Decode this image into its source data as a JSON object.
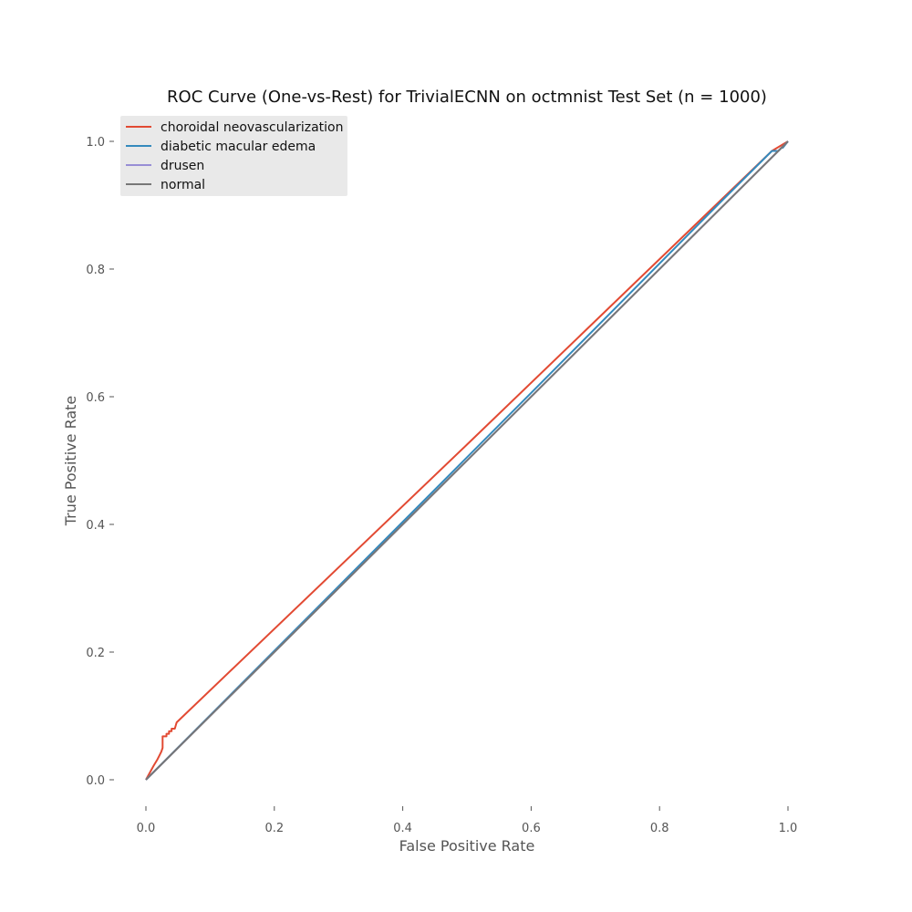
{
  "chart_data": {
    "type": "line",
    "title": "ROC Curve (One-vs-Rest) for TrivialECNN on octmnist Test Set (n = 1000)",
    "xlabel": "False Positive Rate",
    "ylabel": "True Positive Rate",
    "xlim": [
      -0.05,
      1.05
    ],
    "ylim": [
      -0.05,
      1.05
    ],
    "xticks": [
      0.0,
      0.2,
      0.4,
      0.6,
      0.8,
      1.0
    ],
    "xtick_labels": [
      "0.0",
      "0.2",
      "0.4",
      "0.6",
      "0.8",
      "1.0"
    ],
    "yticks": [
      0.0,
      0.2,
      0.4,
      0.6,
      0.8,
      1.0
    ],
    "ytick_labels": [
      "0.0",
      "0.2",
      "0.4",
      "0.6",
      "0.8",
      "1.0"
    ],
    "grid": false,
    "legend_position": "top-left",
    "series": [
      {
        "name": "choroidal neovascularization",
        "color": "#E24A33",
        "points": [
          [
            0.0,
            0.0
          ],
          [
            0.012,
            0.022
          ],
          [
            0.018,
            0.032
          ],
          [
            0.021,
            0.038
          ],
          [
            0.024,
            0.044
          ],
          [
            0.026,
            0.05
          ],
          [
            0.026,
            0.068
          ],
          [
            0.032,
            0.068
          ],
          [
            0.032,
            0.072
          ],
          [
            0.036,
            0.072
          ],
          [
            0.036,
            0.076
          ],
          [
            0.04,
            0.076
          ],
          [
            0.04,
            0.08
          ],
          [
            0.045,
            0.08
          ],
          [
            0.047,
            0.087
          ],
          [
            0.048,
            0.09
          ],
          [
            0.5,
            0.525
          ],
          [
            0.975,
            0.985
          ],
          [
            1.0,
            1.0
          ]
        ]
      },
      {
        "name": "diabetic macular edema",
        "color": "#348ABD",
        "points": [
          [
            0.0,
            0.0
          ],
          [
            0.3,
            0.303
          ],
          [
            0.6,
            0.606
          ],
          [
            0.9,
            0.91
          ],
          [
            0.975,
            0.985
          ],
          [
            0.985,
            0.985
          ],
          [
            0.99,
            0.99
          ],
          [
            0.992,
            0.99
          ],
          [
            1.0,
            1.0
          ]
        ]
      },
      {
        "name": "drusen",
        "color": "#988ED5",
        "points": [
          [
            0.0,
            0.0
          ],
          [
            1.0,
            1.0
          ]
        ]
      },
      {
        "name": "normal",
        "color": "#777777",
        "points": [
          [
            0.0,
            0.0
          ],
          [
            1.0,
            1.0
          ]
        ]
      }
    ]
  }
}
